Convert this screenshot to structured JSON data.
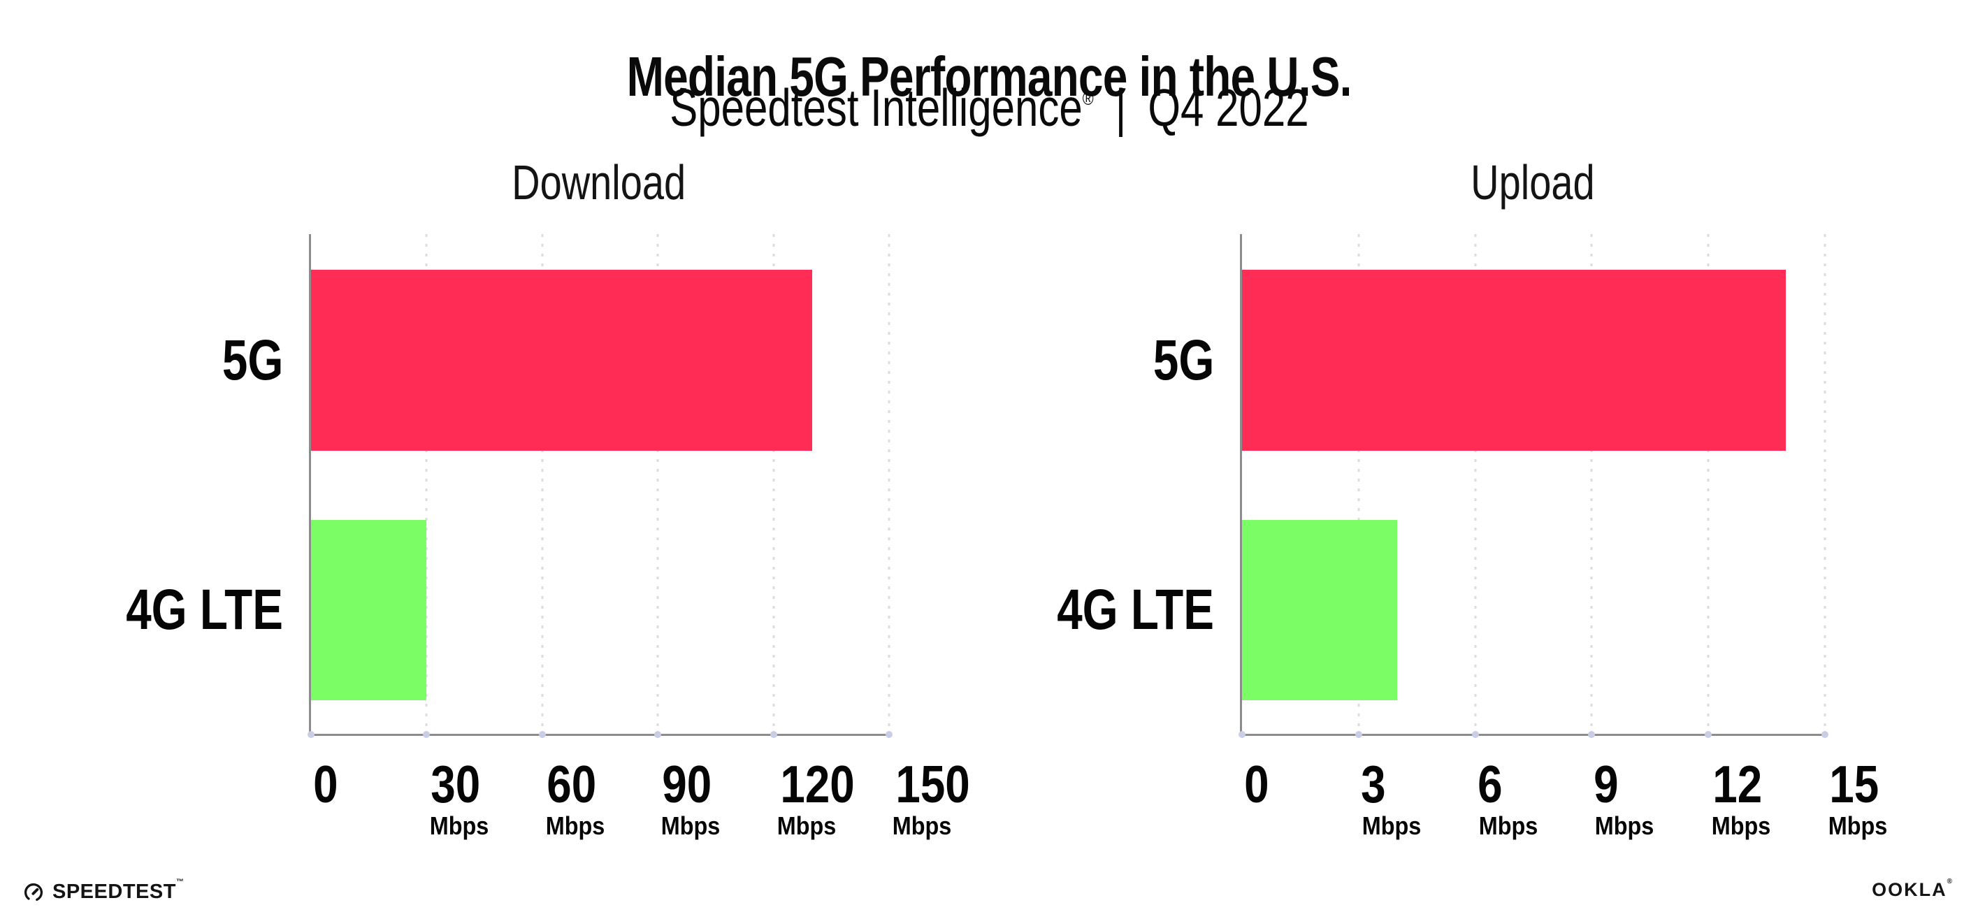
{
  "header": {
    "title": "Median 5G Performance in the U.S.",
    "subtitle_brand": "Speedtest Intelligence",
    "subtitle_mark": "®",
    "subtitle_sep": "|",
    "subtitle_period": "Q4 2022"
  },
  "footer": {
    "speedtest_label": "SPEEDTEST",
    "speedtest_mark": "™",
    "ookla_label": "OOKLA",
    "ookla_mark": "®",
    "speedtest_icon": "gauge-icon"
  },
  "colors": {
    "bar_5g": "#FF2D55",
    "bar_4g_lte": "#7BFD66",
    "axis": "#8C8C8C",
    "gridline": "#DBDBE5",
    "axis_dot": "#C9CDE5",
    "text": "#050505"
  },
  "chart_data": [
    {
      "type": "bar",
      "orientation": "horizontal",
      "title": "Download",
      "categories": [
        "5G",
        "4G LTE"
      ],
      "values": [
        130,
        30
      ],
      "unit": "Mbps",
      "xlim": [
        0,
        150
      ],
      "xticks": [
        0,
        30,
        60,
        90,
        120,
        150
      ],
      "grid": "dotted-vertical",
      "legend": "none",
      "bar_colors": [
        "#FF2D55",
        "#7BFD66"
      ]
    },
    {
      "type": "bar",
      "orientation": "horizontal",
      "title": "Upload",
      "categories": [
        "5G",
        "4G LTE"
      ],
      "values": [
        14,
        4
      ],
      "unit": "Mbps",
      "xlim": [
        0,
        15
      ],
      "xticks": [
        0,
        3,
        6,
        9,
        12,
        15
      ],
      "grid": "dotted-vertical",
      "legend": "none",
      "bar_colors": [
        "#FF2D55",
        "#7BFD66"
      ]
    }
  ]
}
